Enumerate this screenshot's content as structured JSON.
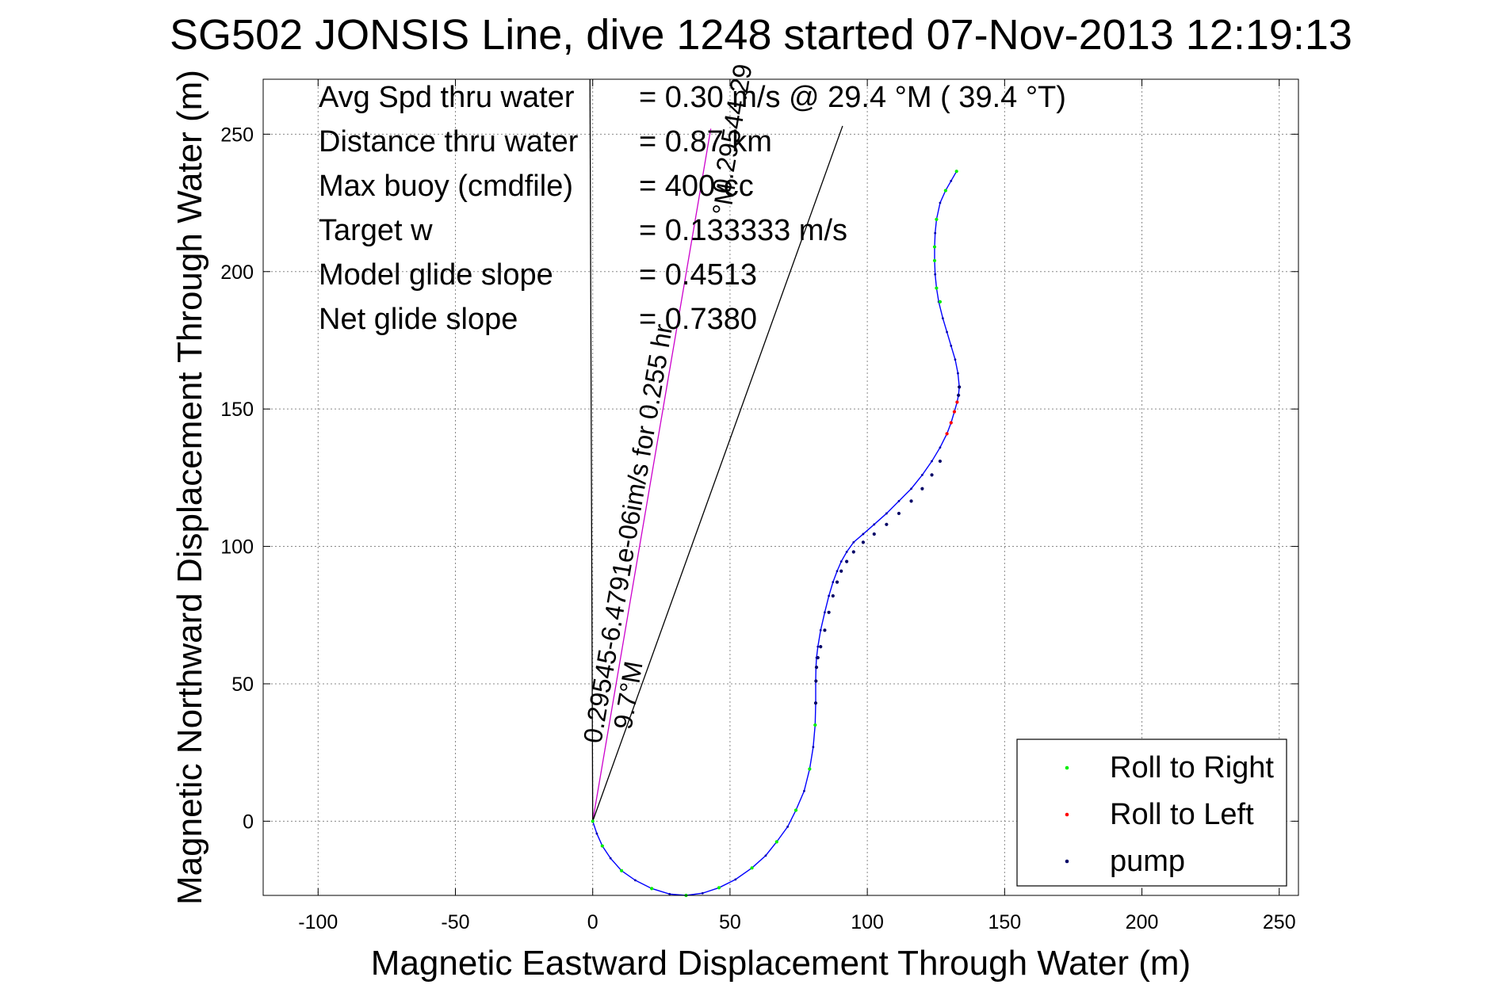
{
  "chart_data": {
    "type": "line",
    "title": "SG502 JONSIS Line, dive 1248 started 07-Nov-2013 12:19:13",
    "xlabel": "Magnetic Eastward Displacement Through Water (m)",
    "ylabel": "Magnetic Northward Displacement Through Water (m)",
    "xlim": [
      -120,
      257
    ],
    "ylim": [
      -27,
      270
    ],
    "xticks": [
      -100,
      -50,
      0,
      50,
      100,
      150,
      200,
      250
    ],
    "yticks": [
      0,
      50,
      100,
      150,
      200,
      250
    ],
    "grid": true,
    "legend_position": "bottom-right",
    "stats": [
      {
        "label": "Avg Spd thru water",
        "value": "=  0.30 m/s @  29.4 °M ( 39.4 °T)"
      },
      {
        "label": "Distance thru water",
        "value": "=  0.87 km"
      },
      {
        "label": "Max buoy (cmdfile)",
        "value": "= 400 cc"
      },
      {
        "label": "Target w",
        "value": "= 0.133333 m/s"
      },
      {
        "label": "Model glide slope",
        "value": "= 0.4513"
      },
      {
        "label": "Net glide slope",
        "value": "= 0.7380"
      }
    ],
    "annotations": [
      {
        "text": "0.29545-6.4791e-06im/s for 0.255 hr",
        "x": 3,
        "y": 28,
        "angle_deg": -80.3
      },
      {
        "text": "9.7°M",
        "x": 14,
        "y": 33,
        "angle_deg": -80.3
      },
      {
        "text": "0.29544.29",
        "x": 50,
        "y": 228,
        "angle_deg": -80.3
      },
      {
        "text": "°M",
        "x": 50,
        "y": 220,
        "angle_deg": -80.3
      }
    ],
    "reference_lines": [
      {
        "name": "current",
        "color": "#cc00cc",
        "points": [
          [
            0,
            0
          ],
          [
            43,
            252
          ]
        ]
      },
      {
        "name": "heading",
        "color": "#000000",
        "points": [
          [
            0,
            0
          ],
          [
            91,
            253
          ]
        ]
      },
      {
        "name": "vertical",
        "color": "#000000",
        "points": [
          [
            0,
            0
          ],
          [
            -1,
            270
          ]
        ]
      }
    ],
    "series": [
      {
        "name": "track",
        "color": "#0000ff",
        "x": [
          0,
          1.5,
          3.5,
          6.5,
          10.5,
          15.5,
          21.5,
          28,
          34,
          40,
          46,
          52,
          58,
          63,
          67,
          71,
          74,
          77,
          79,
          80.3,
          81,
          81.2,
          81.2,
          81.3,
          81.5,
          82,
          83,
          84.5,
          86,
          87.5,
          89,
          90.5,
          92.5,
          95,
          98.5,
          102.5,
          107,
          111.5,
          116,
          120,
          123.5,
          126.5,
          129,
          130.5,
          131.7,
          132.7,
          133.2,
          133.5,
          133,
          132,
          130.5,
          129,
          127.5,
          126,
          125.2,
          124.7,
          124.5,
          124.5,
          124.7,
          125.2,
          126.5,
          128.5,
          130.5,
          132.5
        ],
        "y": [
          0,
          -4.5,
          -9,
          -13.5,
          -18,
          -21.5,
          -24.5,
          -26.5,
          -27,
          -26.2,
          -24.2,
          -21.2,
          -17,
          -12.5,
          -7.5,
          -2,
          4,
          11,
          19,
          27,
          35,
          43,
          51,
          56,
          59.5,
          63.5,
          69.5,
          76,
          82,
          87,
          91,
          94.5,
          98,
          101.5,
          104.5,
          108,
          112,
          116.5,
          121,
          126,
          131,
          136,
          141,
          145,
          149,
          152.5,
          155,
          158,
          163,
          168,
          173,
          178,
          183,
          189,
          194,
          199,
          204,
          209,
          214,
          219,
          225,
          229.5,
          233,
          236.5
        ]
      },
      {
        "name": "Roll to Right",
        "color": "#00ee00",
        "x": [
          0,
          3.5,
          10.5,
          21.5,
          34,
          46,
          58,
          67,
          74,
          79,
          81,
          126.5,
          125.2,
          124.5,
          124.5,
          125.2,
          128.5,
          132.5
        ],
        "y": [
          0,
          -9,
          -18,
          -24.5,
          -27,
          -24.2,
          -17,
          -7.5,
          4,
          19,
          35,
          189,
          194,
          204,
          209,
          219,
          229.5,
          236.5
        ]
      },
      {
        "name": "Roll to Left",
        "color": "#ff0000",
        "x": [
          129,
          130.5,
          131.7,
          132.7
        ],
        "y": [
          141,
          145,
          149,
          152.5
        ]
      },
      {
        "name": "pump",
        "color": "#000066",
        "x": [
          81.2,
          81.3,
          81.5,
          82,
          83,
          84.5,
          86,
          87.5,
          89,
          90.5,
          92.5,
          95,
          98.5,
          102.5,
          107,
          111.5,
          116,
          120,
          123.5,
          126.5,
          133.2,
          133.5
        ],
        "y": [
          43,
          51,
          56,
          59.5,
          63.5,
          69.5,
          76,
          82,
          87,
          91,
          94.5,
          98,
          101.5,
          104.5,
          108,
          112,
          116.5,
          121,
          126,
          131,
          155,
          158
        ]
      }
    ],
    "legend": [
      "Roll to Right",
      "Roll to Left",
      "pump"
    ]
  }
}
